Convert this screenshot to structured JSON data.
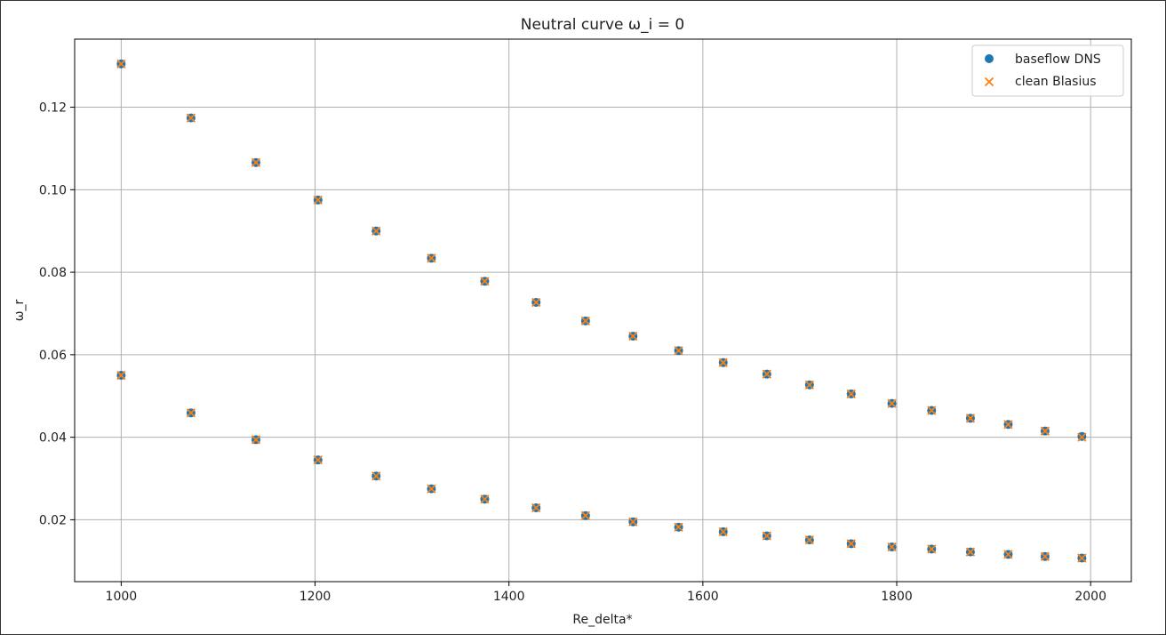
{
  "chart_data": {
    "type": "scatter",
    "title": "Neutral curve ω_i = 0",
    "xlabel": "Re_delta*",
    "ylabel": "ω_r",
    "xlim": [
      952,
      2042
    ],
    "ylim": [
      0.005,
      0.1365
    ],
    "xticks": [
      1000,
      1200,
      1400,
      1600,
      1800,
      2000
    ],
    "xtick_labels": [
      "1000",
      "1200",
      "1400",
      "1600",
      "1800",
      "2000"
    ],
    "yticks": [
      0.02,
      0.04,
      0.06,
      0.08,
      0.1,
      0.12
    ],
    "ytick_labels": [
      "0.02",
      "0.04",
      "0.06",
      "0.08",
      "0.10",
      "0.12"
    ],
    "grid": true,
    "legend_position": "upper right",
    "x": [
      1000,
      1072,
      1139,
      1203,
      1263,
      1320,
      1375,
      1428,
      1479,
      1528,
      1575,
      1621,
      1666,
      1710,
      1753,
      1795,
      1836,
      1876,
      1915,
      1953,
      1991
    ],
    "series": [
      {
        "name": "baseflow DNS",
        "marker": "circle",
        "color": "#1f77b4",
        "upper_branch": [
          0.1305,
          0.1174,
          0.1066,
          0.0975,
          0.09,
          0.0834,
          0.0778,
          0.0727,
          0.0682,
          0.0645,
          0.061,
          0.0581,
          0.0553,
          0.0527,
          0.0505,
          0.0482,
          0.0465,
          0.0446,
          0.0431,
          0.0415,
          0.0402
        ],
        "lower_branch": [
          0.055,
          0.0459,
          0.0394,
          0.0345,
          0.0306,
          0.0275,
          0.025,
          0.0229,
          0.021,
          0.0195,
          0.0182,
          0.0171,
          0.0161,
          0.0151,
          0.0142,
          0.0134,
          0.0129,
          0.0122,
          0.0116,
          0.0111,
          0.0107
        ]
      },
      {
        "name": "clean Blasius",
        "marker": "x",
        "color": "#ff7f0e",
        "upper_branch": [
          0.1305,
          0.1174,
          0.1066,
          0.0975,
          0.09,
          0.0834,
          0.0778,
          0.0727,
          0.0682,
          0.0645,
          0.061,
          0.0581,
          0.0553,
          0.0527,
          0.0505,
          0.0482,
          0.0465,
          0.0446,
          0.0431,
          0.0415,
          0.04
        ],
        "lower_branch": [
          0.055,
          0.0459,
          0.0394,
          0.0345,
          0.0306,
          0.0275,
          0.025,
          0.0229,
          0.021,
          0.0195,
          0.0182,
          0.0171,
          0.0161,
          0.0151,
          0.0142,
          0.0134,
          0.0129,
          0.0122,
          0.0116,
          0.0111,
          0.0107
        ]
      }
    ]
  }
}
